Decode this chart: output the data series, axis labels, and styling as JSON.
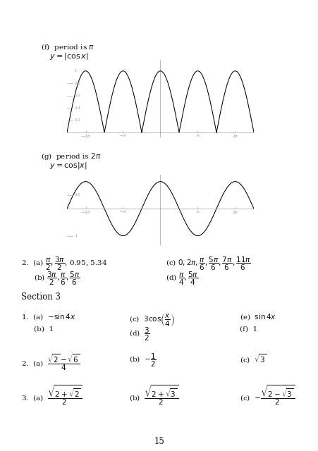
{
  "bg_color": "#ffffff",
  "graph_line_color": "#000000",
  "axis_color": "#999999",
  "tick_color": "#999999",
  "label_color": "#999999",
  "page_number": "15",
  "section3_header": "Section 3"
}
